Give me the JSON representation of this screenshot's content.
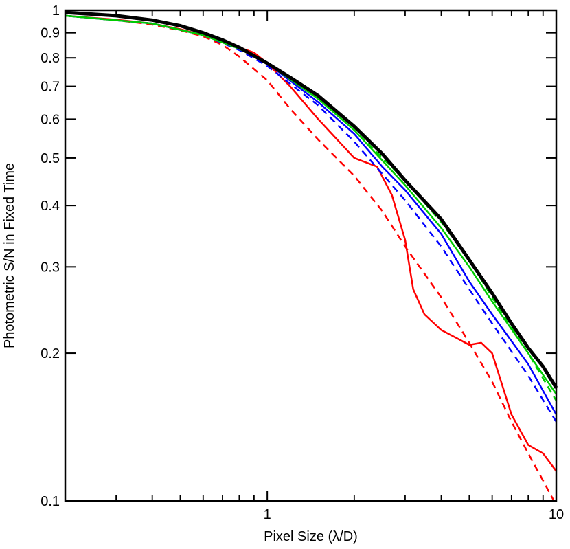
{
  "chart_data": {
    "type": "line",
    "xlabel": "Pixel Size (λ/D)",
    "ylabel": "Photometric S/N in Fixed Time",
    "xscale": "log",
    "yscale": "log",
    "xlim": [
      0.2,
      10
    ],
    "ylim": [
      0.1,
      1
    ],
    "grid": false,
    "x_ticks": [
      {
        "value": 1,
        "label": "1"
      },
      {
        "value": 10,
        "label": "10"
      }
    ],
    "y_ticks": [
      {
        "value": 0.1,
        "label": "0.1"
      },
      {
        "value": 0.2,
        "label": "0.2"
      },
      {
        "value": 0.3,
        "label": "0.3"
      },
      {
        "value": 0.4,
        "label": "0.4"
      },
      {
        "value": 0.5,
        "label": "0.5"
      },
      {
        "value": 0.6,
        "label": "0.6"
      },
      {
        "value": 0.7,
        "label": "0.7"
      },
      {
        "value": 0.8,
        "label": "0.8"
      },
      {
        "value": 0.9,
        "label": "0.9"
      },
      {
        "value": 1,
        "label": "1"
      }
    ],
    "series": [
      {
        "color": "#ff0000",
        "style": "dashed",
        "width": 2.5,
        "points": [
          [
            0.2,
            0.975
          ],
          [
            0.3,
            0.955
          ],
          [
            0.4,
            0.935
          ],
          [
            0.5,
            0.91
          ],
          [
            0.6,
            0.885
          ],
          [
            0.7,
            0.85
          ],
          [
            0.8,
            0.805
          ],
          [
            1.0,
            0.72
          ],
          [
            1.2,
            0.63
          ],
          [
            1.5,
            0.545
          ],
          [
            2.0,
            0.46
          ],
          [
            2.5,
            0.39
          ],
          [
            3.0,
            0.33
          ],
          [
            4.0,
            0.26
          ],
          [
            5.0,
            0.21
          ],
          [
            6.0,
            0.175
          ],
          [
            7.0,
            0.145
          ],
          [
            8.0,
            0.125
          ],
          [
            9.0,
            0.11
          ],
          [
            10.0,
            0.098
          ]
        ]
      },
      {
        "color": "#ff0000",
        "style": "solid",
        "width": 2.5,
        "points": [
          [
            0.2,
            0.975
          ],
          [
            0.3,
            0.957
          ],
          [
            0.4,
            0.94
          ],
          [
            0.5,
            0.915
          ],
          [
            0.6,
            0.89
          ],
          [
            0.7,
            0.86
          ],
          [
            0.8,
            0.84
          ],
          [
            0.9,
            0.82
          ],
          [
            1.0,
            0.78
          ],
          [
            1.2,
            0.7
          ],
          [
            1.5,
            0.6
          ],
          [
            2.0,
            0.5
          ],
          [
            2.4,
            0.48
          ],
          [
            2.7,
            0.42
          ],
          [
            3.0,
            0.34
          ],
          [
            3.2,
            0.27
          ],
          [
            3.5,
            0.24
          ],
          [
            4.0,
            0.223
          ],
          [
            4.5,
            0.215
          ],
          [
            5.0,
            0.208
          ],
          [
            5.5,
            0.21
          ],
          [
            6.0,
            0.2
          ],
          [
            7.0,
            0.15
          ],
          [
            8.0,
            0.13
          ],
          [
            9.0,
            0.125
          ],
          [
            10.0,
            0.115
          ]
        ]
      },
      {
        "color": "#0000ff",
        "style": "dashed",
        "width": 2.5,
        "points": [
          [
            0.2,
            0.975
          ],
          [
            0.4,
            0.94
          ],
          [
            0.6,
            0.89
          ],
          [
            0.8,
            0.83
          ],
          [
            1.0,
            0.77
          ],
          [
            1.5,
            0.64
          ],
          [
            2.0,
            0.54
          ],
          [
            3.0,
            0.41
          ],
          [
            4.0,
            0.33
          ],
          [
            5.0,
            0.27
          ],
          [
            6.0,
            0.23
          ],
          [
            8.0,
            0.18
          ],
          [
            10.0,
            0.145
          ]
        ]
      },
      {
        "color": "#0000ff",
        "style": "solid",
        "width": 2.5,
        "points": [
          [
            0.2,
            0.975
          ],
          [
            0.4,
            0.94
          ],
          [
            0.6,
            0.89
          ],
          [
            0.8,
            0.835
          ],
          [
            1.0,
            0.78
          ],
          [
            1.5,
            0.65
          ],
          [
            2.0,
            0.56
          ],
          [
            2.5,
            0.48
          ],
          [
            3.0,
            0.43
          ],
          [
            4.0,
            0.35
          ],
          [
            5.0,
            0.28
          ],
          [
            6.0,
            0.24
          ],
          [
            8.0,
            0.19
          ],
          [
            10.0,
            0.15
          ]
        ]
      },
      {
        "color": "#00cc00",
        "style": "dashed",
        "width": 2.5,
        "points": [
          [
            0.2,
            0.975
          ],
          [
            0.4,
            0.94
          ],
          [
            0.6,
            0.89
          ],
          [
            0.8,
            0.835
          ],
          [
            1.0,
            0.78
          ],
          [
            1.5,
            0.66
          ],
          [
            2.0,
            0.57
          ],
          [
            3.0,
            0.45
          ],
          [
            4.0,
            0.37
          ],
          [
            5.0,
            0.31
          ],
          [
            6.0,
            0.26
          ],
          [
            8.0,
            0.2
          ],
          [
            10.0,
            0.16
          ]
        ]
      },
      {
        "color": "#00cc00",
        "style": "solid",
        "width": 2.5,
        "points": [
          [
            0.2,
            0.975
          ],
          [
            0.4,
            0.94
          ],
          [
            0.6,
            0.89
          ],
          [
            0.8,
            0.835
          ],
          [
            1.0,
            0.78
          ],
          [
            1.5,
            0.66
          ],
          [
            2.0,
            0.57
          ],
          [
            3.0,
            0.44
          ],
          [
            4.0,
            0.36
          ],
          [
            5.0,
            0.3
          ],
          [
            6.0,
            0.255
          ],
          [
            8.0,
            0.2
          ],
          [
            10.0,
            0.165
          ]
        ]
      },
      {
        "color": "#000000",
        "style": "solid",
        "width": 5,
        "points": [
          [
            0.2,
            0.99
          ],
          [
            0.3,
            0.975
          ],
          [
            0.4,
            0.955
          ],
          [
            0.5,
            0.93
          ],
          [
            0.6,
            0.9
          ],
          [
            0.7,
            0.87
          ],
          [
            0.8,
            0.84
          ],
          [
            1.0,
            0.78
          ],
          [
            1.2,
            0.73
          ],
          [
            1.5,
            0.67
          ],
          [
            2.0,
            0.58
          ],
          [
            2.5,
            0.51
          ],
          [
            3.0,
            0.45
          ],
          [
            4.0,
            0.375
          ],
          [
            5.0,
            0.31
          ],
          [
            6.0,
            0.265
          ],
          [
            7.0,
            0.23
          ],
          [
            8.0,
            0.205
          ],
          [
            9.0,
            0.188
          ],
          [
            10.0,
            0.17
          ]
        ]
      }
    ]
  }
}
